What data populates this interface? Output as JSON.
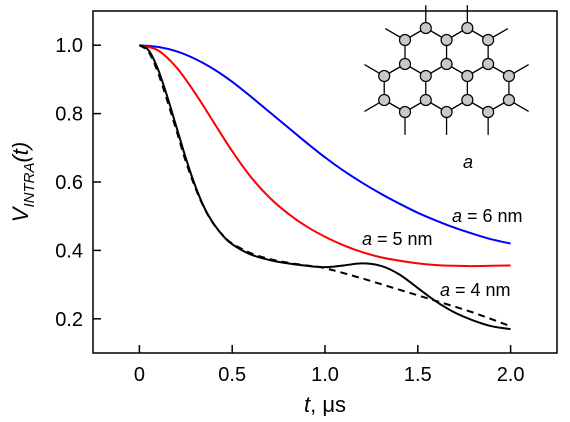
{
  "chart_data": {
    "type": "line",
    "xlabel": {
      "var": "t",
      "unit": ", μs"
    },
    "ylabel": {
      "main": "V",
      "sub": "INTRA",
      "arg": "(t)"
    },
    "xlim": [
      -0.25,
      2.25
    ],
    "ylim": [
      0.1,
      1.1
    ],
    "xticks": [
      0,
      0.5,
      1.0,
      1.5,
      2.0
    ],
    "xtick_labels": [
      "0",
      "0.5",
      "1.0",
      "1.5",
      "2.0"
    ],
    "yticks": [
      0.2,
      0.4,
      0.6,
      0.8,
      1.0
    ],
    "ytick_labels": [
      "0.2",
      "0.4",
      "0.6",
      "0.8",
      "1.0"
    ],
    "grid": false,
    "series": [
      {
        "name": "a = 6 nm",
        "var": "a",
        "value_text": " = 6 nm",
        "color": "#0000ff",
        "dash": "solid",
        "x": [
          0,
          0.1,
          0.2,
          0.3,
          0.4,
          0.5,
          0.6,
          0.7,
          0.8,
          0.9,
          1.0,
          1.1,
          1.2,
          1.3,
          1.4,
          1.5,
          1.6,
          1.7,
          1.8,
          1.9,
          2.0
        ],
        "y": [
          1.0,
          0.995,
          0.982,
          0.96,
          0.93,
          0.893,
          0.85,
          0.805,
          0.76,
          0.715,
          0.672,
          0.633,
          0.598,
          0.566,
          0.537,
          0.51,
          0.487,
          0.466,
          0.448,
          0.432,
          0.42
        ]
      },
      {
        "name": "a = 5 nm",
        "var": "a",
        "value_text": " = 5 nm",
        "color": "#ff0000",
        "dash": "solid",
        "x": [
          0,
          0.1,
          0.2,
          0.3,
          0.4,
          0.5,
          0.6,
          0.7,
          0.8,
          0.9,
          1.0,
          1.1,
          1.2,
          1.3,
          1.4,
          1.5,
          1.6,
          1.7,
          1.8,
          1.9,
          2.0
        ],
        "y": [
          1.0,
          0.985,
          0.935,
          0.86,
          0.775,
          0.69,
          0.615,
          0.555,
          0.508,
          0.47,
          0.44,
          0.415,
          0.395,
          0.38,
          0.37,
          0.362,
          0.357,
          0.355,
          0.354,
          0.355,
          0.356
        ]
      },
      {
        "name": "a = 4 nm",
        "var": "a",
        "value_text": " = 4 nm",
        "color": "#000000",
        "dash": "solid",
        "x": [
          0,
          0.05,
          0.1,
          0.15,
          0.2,
          0.25,
          0.3,
          0.35,
          0.4,
          0.45,
          0.5,
          0.6,
          0.7,
          0.8,
          0.9,
          1.0,
          1.1,
          1.2,
          1.3,
          1.4,
          1.5,
          1.6,
          1.7,
          1.8,
          1.9,
          2.0
        ],
        "y": [
          1.0,
          0.985,
          0.93,
          0.85,
          0.76,
          0.67,
          0.59,
          0.525,
          0.478,
          0.443,
          0.418,
          0.388,
          0.372,
          0.362,
          0.355,
          0.351,
          0.356,
          0.362,
          0.355,
          0.33,
          0.29,
          0.25,
          0.218,
          0.195,
          0.178,
          0.17
        ]
      },
      {
        "name": "",
        "color": "#000000",
        "dash": "dashed",
        "x": [
          0,
          0.05,
          0.1,
          0.15,
          0.2,
          0.25,
          0.3,
          0.35,
          0.4,
          0.45,
          0.5,
          0.6,
          0.7,
          0.8,
          0.9,
          1.0,
          1.2,
          1.4,
          1.6,
          1.8,
          2.0
        ],
        "y": [
          1.0,
          0.98,
          0.92,
          0.838,
          0.75,
          0.66,
          0.585,
          0.523,
          0.477,
          0.444,
          0.42,
          0.392,
          0.375,
          0.364,
          0.356,
          0.348,
          0.318,
          0.285,
          0.252,
          0.218,
          0.178
        ]
      }
    ],
    "inset": {
      "type": "hexagonal-lattice",
      "label": "a"
    }
  }
}
